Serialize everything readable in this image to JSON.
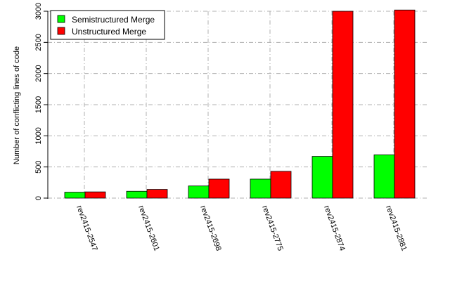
{
  "chart_data": {
    "type": "bar",
    "title": "",
    "xlabel": "",
    "ylabel": "Number of conflicting lines of code",
    "categories": [
      "rev2415-2547",
      "rev2415-2601",
      "rev2415-2698",
      "rev2415-2775",
      "rev2415-2874",
      "rev2415-2881"
    ],
    "series": [
      {
        "name": "Semistructured Merge",
        "color": "#00ff00",
        "values": [
          95,
          110,
          195,
          305,
          670,
          695
        ]
      },
      {
        "name": "Unstructured Merge",
        "color": "#ff0000",
        "values": [
          100,
          140,
          305,
          430,
          3000,
          3020
        ]
      }
    ],
    "ylim": [
      0,
      3000
    ],
    "yticks": [
      0,
      500,
      1000,
      1500,
      2000,
      2500,
      3000
    ],
    "grid": true,
    "legend_position": "top-left"
  }
}
